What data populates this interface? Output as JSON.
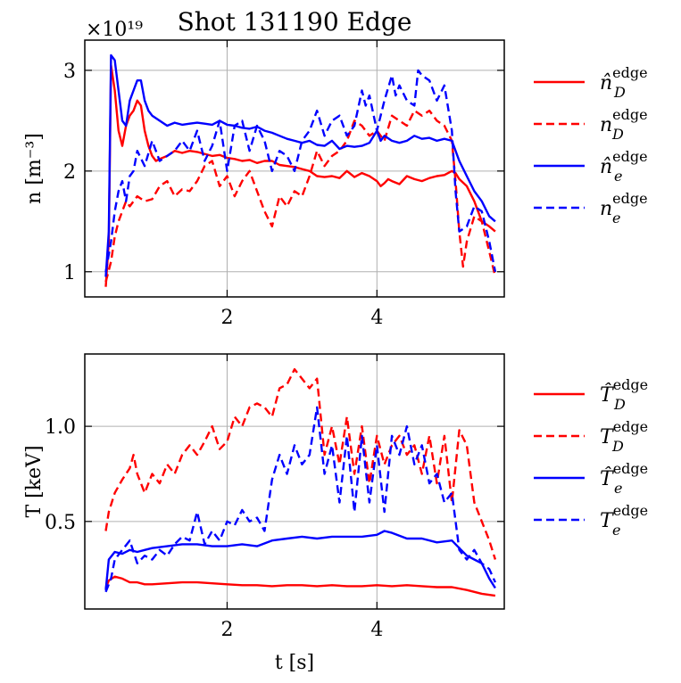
{
  "chart_data": [
    {
      "type": "line",
      "title": "Shot 131190 Edge",
      "xlabel": "",
      "ylabel": "n [m⁻³]",
      "y_multiplier": "×10¹⁹",
      "xlim": [
        0.1,
        5.7
      ],
      "ylim": [
        0.75,
        3.3
      ],
      "xticks": [
        {
          "value": 2,
          "label": "2"
        },
        {
          "value": 4,
          "label": "4"
        }
      ],
      "yticks": [
        {
          "value": 1,
          "label": "1"
        },
        {
          "value": 2,
          "label": "2"
        },
        {
          "value": 3,
          "label": "3"
        }
      ],
      "grid": true,
      "legend_position": "outside-right",
      "series": [
        {
          "name": "n̂_D^edge",
          "label_base": "n̂",
          "label_sub": "D",
          "label_sup": "edge",
          "color": "#ff0000",
          "dash": "solid",
          "x": [
            0.38,
            0.42,
            0.45,
            0.5,
            0.55,
            0.6,
            0.65,
            0.7,
            0.75,
            0.8,
            0.85,
            0.9,
            0.95,
            1.0,
            1.05,
            1.1,
            1.2,
            1.3,
            1.4,
            1.5,
            1.6,
            1.7,
            1.8,
            1.9,
            2.0,
            2.1,
            2.2,
            2.3,
            2.4,
            2.5,
            2.6,
            2.7,
            2.8,
            2.9,
            3.0,
            3.1,
            3.2,
            3.3,
            3.4,
            3.5,
            3.6,
            3.7,
            3.8,
            3.9,
            4.0,
            4.05,
            4.1,
            4.15,
            4.2,
            4.3,
            4.4,
            4.5,
            4.6,
            4.7,
            4.8,
            4.9,
            5.0,
            5.05,
            5.1,
            5.2,
            5.3,
            5.4,
            5.5,
            5.58
          ],
          "y": [
            0.85,
            1.3,
            3.05,
            2.8,
            2.4,
            2.25,
            2.45,
            2.55,
            2.6,
            2.7,
            2.65,
            2.4,
            2.25,
            2.15,
            2.1,
            2.12,
            2.15,
            2.2,
            2.18,
            2.2,
            2.19,
            2.17,
            2.15,
            2.16,
            2.13,
            2.12,
            2.1,
            2.11,
            2.08,
            2.1,
            2.1,
            2.06,
            2.05,
            2.04,
            2.02,
            2.0,
            1.95,
            1.94,
            1.95,
            1.93,
            2.0,
            1.94,
            1.98,
            1.95,
            1.9,
            1.85,
            1.88,
            1.92,
            1.9,
            1.87,
            1.95,
            1.92,
            1.9,
            1.93,
            1.95,
            1.96,
            2.0,
            1.98,
            1.92,
            1.85,
            1.7,
            1.5,
            1.45,
            1.4
          ]
        },
        {
          "name": "n_D^edge",
          "label_base": "n",
          "label_sub": "D",
          "label_sup": "edge",
          "color": "#ff0000",
          "dash": "dashed",
          "x": [
            0.38,
            0.45,
            0.5,
            0.55,
            0.6,
            0.65,
            0.7,
            0.8,
            0.9,
            1.0,
            1.1,
            1.2,
            1.3,
            1.4,
            1.5,
            1.6,
            1.7,
            1.8,
            1.9,
            2.0,
            2.1,
            2.2,
            2.3,
            2.4,
            2.5,
            2.6,
            2.7,
            2.8,
            2.9,
            3.0,
            3.1,
            3.2,
            3.3,
            3.4,
            3.5,
            3.6,
            3.7,
            3.8,
            3.9,
            4.0,
            4.1,
            4.2,
            4.3,
            4.4,
            4.5,
            4.6,
            4.7,
            4.8,
            4.9,
            5.0,
            5.05,
            5.1,
            5.15,
            5.2,
            5.3,
            5.4,
            5.5,
            5.58
          ],
          "y": [
            0.9,
            1.1,
            1.35,
            1.5,
            1.6,
            1.7,
            1.65,
            1.75,
            1.7,
            1.72,
            1.85,
            1.9,
            1.75,
            1.82,
            1.8,
            1.9,
            2.05,
            2.1,
            1.85,
            1.95,
            1.75,
            1.9,
            2.0,
            1.8,
            1.6,
            1.45,
            1.75,
            1.65,
            1.8,
            1.75,
            1.95,
            2.2,
            2.05,
            2.15,
            2.2,
            2.3,
            2.5,
            2.45,
            2.35,
            2.4,
            2.3,
            2.55,
            2.5,
            2.45,
            2.6,
            2.55,
            2.6,
            2.5,
            2.45,
            2.3,
            1.9,
            1.4,
            1.05,
            1.3,
            1.55,
            1.5,
            1.2,
            0.95
          ]
        },
        {
          "name": "n̂_e^edge",
          "label_base": "n̂",
          "label_sub": "e",
          "label_sup": "edge",
          "color": "#0000ff",
          "dash": "solid",
          "x": [
            0.38,
            0.42,
            0.45,
            0.5,
            0.55,
            0.6,
            0.65,
            0.7,
            0.75,
            0.8,
            0.85,
            0.9,
            0.95,
            1.0,
            1.1,
            1.2,
            1.3,
            1.4,
            1.5,
            1.6,
            1.7,
            1.8,
            1.9,
            2.0,
            2.1,
            2.2,
            2.3,
            2.4,
            2.5,
            2.6,
            2.7,
            2.8,
            2.9,
            3.0,
            3.1,
            3.2,
            3.3,
            3.4,
            3.5,
            3.6,
            3.7,
            3.8,
            3.9,
            4.0,
            4.05,
            4.1,
            4.2,
            4.3,
            4.4,
            4.5,
            4.6,
            4.7,
            4.8,
            4.9,
            5.0,
            5.1,
            5.2,
            5.3,
            5.4,
            5.5,
            5.58
          ],
          "y": [
            0.95,
            1.4,
            3.15,
            3.1,
            2.8,
            2.5,
            2.45,
            2.7,
            2.8,
            2.9,
            2.9,
            2.7,
            2.6,
            2.55,
            2.5,
            2.45,
            2.48,
            2.46,
            2.47,
            2.48,
            2.47,
            2.46,
            2.5,
            2.46,
            2.45,
            2.43,
            2.42,
            2.44,
            2.4,
            2.38,
            2.35,
            2.32,
            2.3,
            2.28,
            2.3,
            2.26,
            2.25,
            2.3,
            2.22,
            2.25,
            2.24,
            2.25,
            2.28,
            2.4,
            2.3,
            2.35,
            2.3,
            2.28,
            2.3,
            2.35,
            2.32,
            2.33,
            2.3,
            2.32,
            2.3,
            2.1,
            1.95,
            1.8,
            1.7,
            1.55,
            1.5
          ]
        },
        {
          "name": "n_e^edge",
          "label_base": "n",
          "label_sub": "e",
          "label_sup": "edge",
          "color": "#0000ff",
          "dash": "dashed",
          "x": [
            0.38,
            0.45,
            0.5,
            0.55,
            0.6,
            0.65,
            0.7,
            0.75,
            0.8,
            0.9,
            1.0,
            1.1,
            1.2,
            1.3,
            1.4,
            1.5,
            1.6,
            1.7,
            1.8,
            1.9,
            2.0,
            2.1,
            2.2,
            2.3,
            2.4,
            2.5,
            2.6,
            2.7,
            2.8,
            2.9,
            3.0,
            3.1,
            3.2,
            3.3,
            3.4,
            3.5,
            3.6,
            3.7,
            3.8,
            3.85,
            3.9,
            4.0,
            4.1,
            4.2,
            4.25,
            4.3,
            4.4,
            4.5,
            4.55,
            4.6,
            4.7,
            4.8,
            4.9,
            5.0,
            5.05,
            5.1,
            5.2,
            5.3,
            5.4,
            5.5,
            5.58
          ],
          "y": [
            1.0,
            1.3,
            1.6,
            1.8,
            1.9,
            1.7,
            1.95,
            2.0,
            2.2,
            2.05,
            2.3,
            2.1,
            2.15,
            2.2,
            2.3,
            2.2,
            2.4,
            2.1,
            2.25,
            2.5,
            2.0,
            2.45,
            2.5,
            2.2,
            2.45,
            2.3,
            2.0,
            2.2,
            2.15,
            2.0,
            2.3,
            2.4,
            2.6,
            2.35,
            2.5,
            2.55,
            2.35,
            2.45,
            2.8,
            2.65,
            2.75,
            2.4,
            2.7,
            2.95,
            2.75,
            2.85,
            2.7,
            2.65,
            3.0,
            2.95,
            2.9,
            2.7,
            2.85,
            2.4,
            1.8,
            1.4,
            1.45,
            1.65,
            1.6,
            1.3,
            1.0
          ]
        }
      ]
    },
    {
      "type": "line",
      "title": "",
      "xlabel": "t [s]",
      "ylabel": "T [keV]",
      "xlim": [
        0.1,
        5.7
      ],
      "ylim": [
        0.04,
        1.38
      ],
      "xticks": [
        {
          "value": 2,
          "label": "2"
        },
        {
          "value": 4,
          "label": "4"
        }
      ],
      "yticks": [
        {
          "value": 0.5,
          "label": "0.5"
        },
        {
          "value": 1.0,
          "label": "1.0"
        }
      ],
      "grid": true,
      "legend_position": "outside-right",
      "series": [
        {
          "name": "T̂_D^edge",
          "label_base": "T̂",
          "label_sub": "D",
          "label_sup": "edge",
          "color": "#ff0000",
          "dash": "solid",
          "x": [
            0.38,
            0.42,
            0.5,
            0.6,
            0.7,
            0.8,
            0.9,
            1.0,
            1.2,
            1.4,
            1.6,
            1.8,
            2.0,
            2.2,
            2.4,
            2.6,
            2.8,
            3.0,
            3.2,
            3.4,
            3.6,
            3.8,
            4.0,
            4.2,
            4.4,
            4.6,
            4.8,
            5.0,
            5.2,
            5.4,
            5.58
          ],
          "y": [
            0.15,
            0.19,
            0.21,
            0.2,
            0.18,
            0.18,
            0.17,
            0.17,
            0.175,
            0.18,
            0.18,
            0.175,
            0.17,
            0.165,
            0.165,
            0.16,
            0.165,
            0.165,
            0.16,
            0.165,
            0.16,
            0.16,
            0.165,
            0.16,
            0.165,
            0.16,
            0.155,
            0.155,
            0.14,
            0.12,
            0.11
          ]
        },
        {
          "name": "T_D^edge",
          "label_base": "T",
          "label_sub": "D",
          "label_sup": "edge",
          "color": "#ff0000",
          "dash": "dashed",
          "x": [
            0.38,
            0.42,
            0.5,
            0.6,
            0.7,
            0.75,
            0.8,
            0.9,
            1.0,
            1.1,
            1.2,
            1.3,
            1.4,
            1.5,
            1.6,
            1.7,
            1.8,
            1.9,
            2.0,
            2.1,
            2.2,
            2.3,
            2.4,
            2.5,
            2.6,
            2.7,
            2.8,
            2.9,
            3.0,
            3.1,
            3.2,
            3.3,
            3.4,
            3.5,
            3.6,
            3.7,
            3.8,
            3.9,
            4.0,
            4.1,
            4.2,
            4.3,
            4.4,
            4.5,
            4.6,
            4.7,
            4.8,
            4.9,
            5.0,
            5.1,
            5.2,
            5.3,
            5.4,
            5.5,
            5.58
          ],
          "y": [
            0.45,
            0.55,
            0.65,
            0.72,
            0.78,
            0.85,
            0.75,
            0.65,
            0.75,
            0.7,
            0.8,
            0.75,
            0.85,
            0.9,
            0.85,
            0.92,
            1.0,
            0.88,
            0.92,
            1.05,
            1.0,
            1.1,
            1.12,
            1.1,
            1.05,
            1.2,
            1.22,
            1.3,
            1.25,
            1.2,
            1.25,
            0.85,
            1.0,
            0.8,
            1.05,
            0.75,
            1.0,
            0.7,
            0.95,
            0.8,
            0.9,
            0.95,
            0.85,
            0.9,
            0.75,
            0.95,
            0.7,
            0.95,
            0.6,
            0.98,
            0.9,
            0.6,
            0.5,
            0.4,
            0.3
          ]
        },
        {
          "name": "T̂_e^edge",
          "label_base": "T̂",
          "label_sub": "e",
          "label_sup": "edge",
          "color": "#0000ff",
          "dash": "solid",
          "x": [
            0.38,
            0.42,
            0.5,
            0.6,
            0.7,
            0.8,
            0.9,
            1.0,
            1.2,
            1.4,
            1.6,
            1.8,
            2.0,
            2.2,
            2.4,
            2.6,
            2.8,
            3.0,
            3.2,
            3.4,
            3.6,
            3.8,
            4.0,
            4.1,
            4.2,
            4.4,
            4.6,
            4.8,
            5.0,
            5.1,
            5.2,
            5.3,
            5.4,
            5.5,
            5.58
          ],
          "y": [
            0.14,
            0.3,
            0.34,
            0.33,
            0.35,
            0.34,
            0.35,
            0.36,
            0.37,
            0.38,
            0.38,
            0.37,
            0.37,
            0.38,
            0.37,
            0.4,
            0.41,
            0.42,
            0.41,
            0.42,
            0.42,
            0.42,
            0.43,
            0.45,
            0.44,
            0.41,
            0.41,
            0.39,
            0.4,
            0.36,
            0.32,
            0.3,
            0.28,
            0.2,
            0.15
          ]
        },
        {
          "name": "T_e^edge",
          "label_base": "T",
          "label_sub": "e",
          "label_sup": "edge",
          "color": "#0000ff",
          "dash": "dashed",
          "x": [
            0.38,
            0.45,
            0.5,
            0.6,
            0.7,
            0.8,
            0.9,
            1.0,
            1.1,
            1.2,
            1.3,
            1.4,
            1.5,
            1.6,
            1.7,
            1.8,
            1.9,
            2.0,
            2.1,
            2.2,
            2.3,
            2.4,
            2.5,
            2.6,
            2.7,
            2.8,
            2.9,
            3.0,
            3.1,
            3.2,
            3.3,
            3.4,
            3.5,
            3.6,
            3.7,
            3.8,
            3.9,
            4.0,
            4.1,
            4.2,
            4.3,
            4.4,
            4.5,
            4.6,
            4.7,
            4.8,
            4.9,
            5.0,
            5.1,
            5.2,
            5.3,
            5.4,
            5.5,
            5.58
          ],
          "y": [
            0.13,
            0.2,
            0.3,
            0.35,
            0.4,
            0.28,
            0.32,
            0.3,
            0.35,
            0.32,
            0.38,
            0.42,
            0.4,
            0.55,
            0.38,
            0.45,
            0.4,
            0.5,
            0.48,
            0.56,
            0.5,
            0.52,
            0.45,
            0.72,
            0.85,
            0.75,
            0.9,
            0.8,
            0.85,
            1.1,
            0.75,
            0.9,
            0.6,
            0.95,
            0.55,
            0.95,
            0.6,
            0.9,
            0.55,
            0.95,
            0.85,
            1.0,
            0.8,
            0.9,
            0.7,
            0.75,
            0.6,
            0.65,
            0.35,
            0.3,
            0.35,
            0.28,
            0.25,
            0.18
          ]
        }
      ]
    }
  ]
}
